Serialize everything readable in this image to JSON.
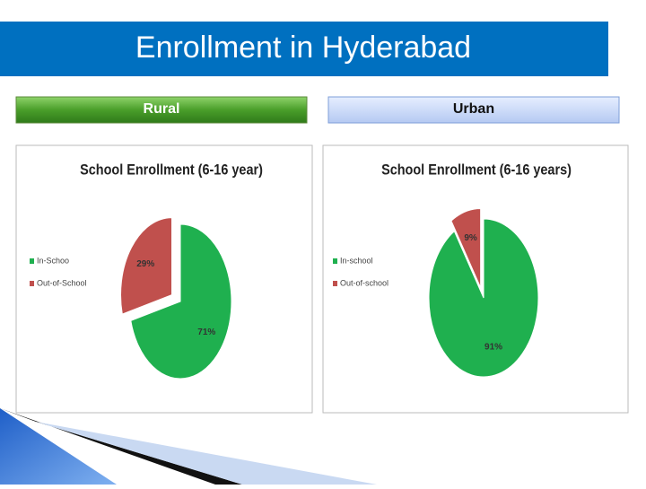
{
  "title": "Enrollment in Hyderabad",
  "panels": [
    "Rural",
    "Urban"
  ],
  "chart_data": [
    {
      "type": "pie",
      "title": "School Enrollment (6-16 year)",
      "categories": [
        "In-Schoo",
        "Out-of-School"
      ],
      "values": [
        71,
        29
      ],
      "value_labels": [
        "71%",
        "29%"
      ],
      "colors": [
        "#1fb04f",
        "#c0504d"
      ],
      "legend": "left"
    },
    {
      "type": "pie",
      "title": "School Enrollment (6-16 years)",
      "categories": [
        "In-school",
        "Out-of-school"
      ],
      "values": [
        91,
        9
      ],
      "value_labels": [
        "91%",
        "9%"
      ],
      "colors": [
        "#1fb04f",
        "#c0504d"
      ],
      "legend": "left"
    }
  ]
}
